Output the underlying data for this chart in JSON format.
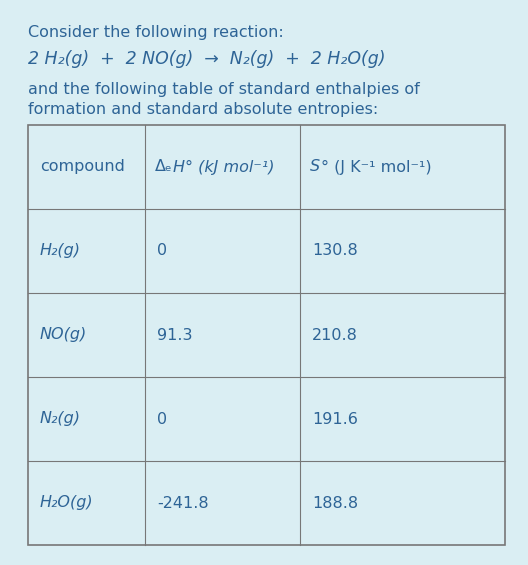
{
  "bg_color": "#daeef3",
  "text_color": "#2e6496",
  "table_line_color": "#777777",
  "title_line1": "Consider the following reaction:",
  "reaction_parts": [
    {
      "text": "2 H",
      "style": "normal"
    },
    {
      "text": "2",
      "style": "sub"
    },
    {
      "text": "(g)  +  2 NO(g)  →  N",
      "style": "normal"
    },
    {
      "text": "2",
      "style": "sub"
    },
    {
      "text": "(g)  +  2 H",
      "style": "normal"
    },
    {
      "text": "2",
      "style": "sub"
    },
    {
      "text": "O(g)",
      "style": "normal"
    }
  ],
  "subtitle_line1": "and the following table of standard enthalpies of",
  "subtitle_line2": "formation and standard absolute entropies:",
  "col_headers": [
    "compound",
    "ΔₑH° (kJ mol⁻¹)",
    "S° (J K⁻¹ mol⁻¹)"
  ],
  "rows": [
    [
      "H₂(g)",
      "0",
      "130.8"
    ],
    [
      "NO(g)",
      "91.3",
      "210.8"
    ],
    [
      "N₂(g)",
      "0",
      "191.6"
    ],
    [
      "H₂O(g)",
      "-241.8",
      "188.8"
    ]
  ],
  "font_size_body": 11.5,
  "font_size_table": 11.5,
  "font_size_reaction": 12.5
}
